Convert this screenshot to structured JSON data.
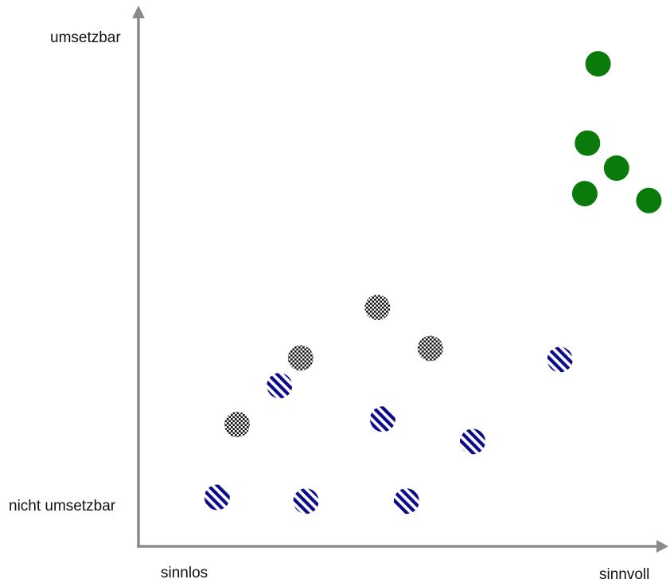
{
  "chart_data": {
    "type": "scatter",
    "title": "",
    "axes": {
      "x": {
        "min_label": "sinnlos",
        "max_label": "sinnvoll",
        "range": [
          0,
          10
        ]
      },
      "y": {
        "min_label": "nicht umsetzbar",
        "max_label": "umsetzbar",
        "range": [
          0,
          10
        ]
      }
    },
    "grid": false,
    "legend": "none",
    "series": [
      {
        "style": "solid",
        "color": "#0a7a0a",
        "points": [
          {
            "x": 8.67,
            "y": 9.07
          },
          {
            "x": 8.47,
            "y": 7.58
          },
          {
            "x": 9.02,
            "y": 7.11
          },
          {
            "x": 8.42,
            "y": 6.63
          },
          {
            "x": 9.63,
            "y": 6.5
          }
        ]
      },
      {
        "style": "striped",
        "color": "#0b0b8a",
        "points": [
          {
            "x": 1.47,
            "y": 0.92
          },
          {
            "x": 3.15,
            "y": 0.85
          },
          {
            "x": 5.05,
            "y": 0.85
          },
          {
            "x": 4.6,
            "y": 2.39
          },
          {
            "x": 6.3,
            "y": 1.97
          },
          {
            "x": 2.65,
            "y": 3.02
          },
          {
            "x": 7.95,
            "y": 3.51
          }
        ]
      },
      {
        "style": "dotted",
        "color": "#111111",
        "points": [
          {
            "x": 1.85,
            "y": 2.29
          },
          {
            "x": 3.05,
            "y": 3.54
          },
          {
            "x": 4.5,
            "y": 4.49
          },
          {
            "x": 5.5,
            "y": 3.72
          }
        ]
      }
    ]
  }
}
